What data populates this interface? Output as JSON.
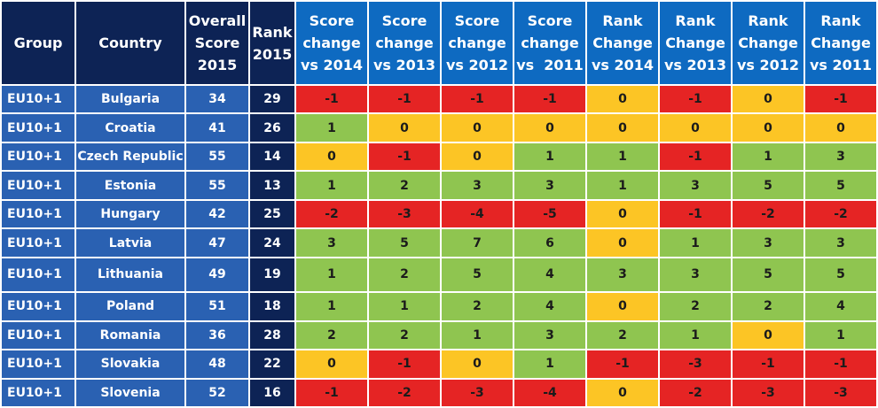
{
  "colors": {
    "header_dark": "#0d2355",
    "header_blue": "#0e6ac1",
    "label_blue": "#2a61b2",
    "negative": "#e52424",
    "zero": "#fcc525",
    "positive": "#8fc550"
  },
  "chart_data": {
    "type": "table",
    "columns": [
      "Group",
      "Country",
      "Overall Score 2015",
      "Rank 2015",
      "Score change vs 2014",
      "Score change vs 2013",
      "Score change vs 2012",
      "Score change vs  2011",
      "Rank Change vs 2014",
      "Rank Change vs 2013",
      "Rank Change vs 2012",
      "Rank Change vs 2011"
    ],
    "header_lines": [
      [
        "Group"
      ],
      [
        "Country"
      ],
      [
        "Overall",
        "Score",
        "2015"
      ],
      [
        "Rank",
        "2015"
      ],
      [
        "Score",
        "change",
        "vs 2014"
      ],
      [
        "Score",
        "change",
        "vs 2013"
      ],
      [
        "Score",
        "change",
        "vs 2012"
      ],
      [
        "Score",
        "change",
        "vs  2011"
      ],
      [
        "Rank",
        "Change",
        "vs 2014"
      ],
      [
        "Rank",
        "Change",
        "vs 2013"
      ],
      [
        "Rank",
        "Change",
        "vs 2012"
      ],
      [
        "Rank",
        "Change",
        "vs 2011"
      ]
    ],
    "rows": [
      {
        "group": "EU10+1",
        "country": "Bulgaria",
        "score": 34,
        "rank": 29,
        "changes": [
          -1,
          -1,
          -1,
          -1,
          0,
          -1,
          0,
          -1
        ]
      },
      {
        "group": "EU10+1",
        "country": "Croatia",
        "score": 41,
        "rank": 26,
        "changes": [
          1,
          0,
          0,
          0,
          0,
          0,
          0,
          0
        ]
      },
      {
        "group": "EU10+1",
        "country": "Czech Republic",
        "score": 55,
        "rank": 14,
        "changes": [
          0,
          -1,
          0,
          1,
          1,
          -1,
          1,
          3
        ]
      },
      {
        "group": "EU10+1",
        "country": "Estonia",
        "score": 55,
        "rank": 13,
        "changes": [
          1,
          2,
          3,
          3,
          1,
          3,
          5,
          5
        ]
      },
      {
        "group": "EU10+1",
        "country": "Hungary",
        "score": 42,
        "rank": 25,
        "changes": [
          -2,
          -3,
          -4,
          -5,
          0,
          -1,
          -2,
          -2
        ]
      },
      {
        "group": "EU10+1",
        "country": "Latvia",
        "score": 47,
        "rank": 24,
        "changes": [
          3,
          5,
          7,
          6,
          0,
          1,
          3,
          3
        ]
      },
      {
        "group": "EU10+1",
        "country": "Lithuania",
        "score": 49,
        "rank": 19,
        "changes": [
          1,
          2,
          5,
          4,
          3,
          3,
          5,
          5
        ]
      },
      {
        "group": "EU10+1",
        "country": "Poland",
        "score": 51,
        "rank": 18,
        "changes": [
          1,
          1,
          2,
          4,
          0,
          2,
          2,
          4
        ]
      },
      {
        "group": "EU10+1",
        "country": "Romania",
        "score": 36,
        "rank": 28,
        "changes": [
          2,
          2,
          1,
          3,
          2,
          1,
          0,
          1
        ]
      },
      {
        "group": "EU10+1",
        "country": "Slovakia",
        "score": 48,
        "rank": 22,
        "changes": [
          0,
          -1,
          0,
          1,
          -1,
          -3,
          -1,
          -1
        ]
      },
      {
        "group": "EU10+1",
        "country": "Slovenia",
        "score": 52,
        "rank": 16,
        "changes": [
          -1,
          -2,
          -3,
          -4,
          0,
          -2,
          -3,
          -3
        ]
      }
    ]
  }
}
